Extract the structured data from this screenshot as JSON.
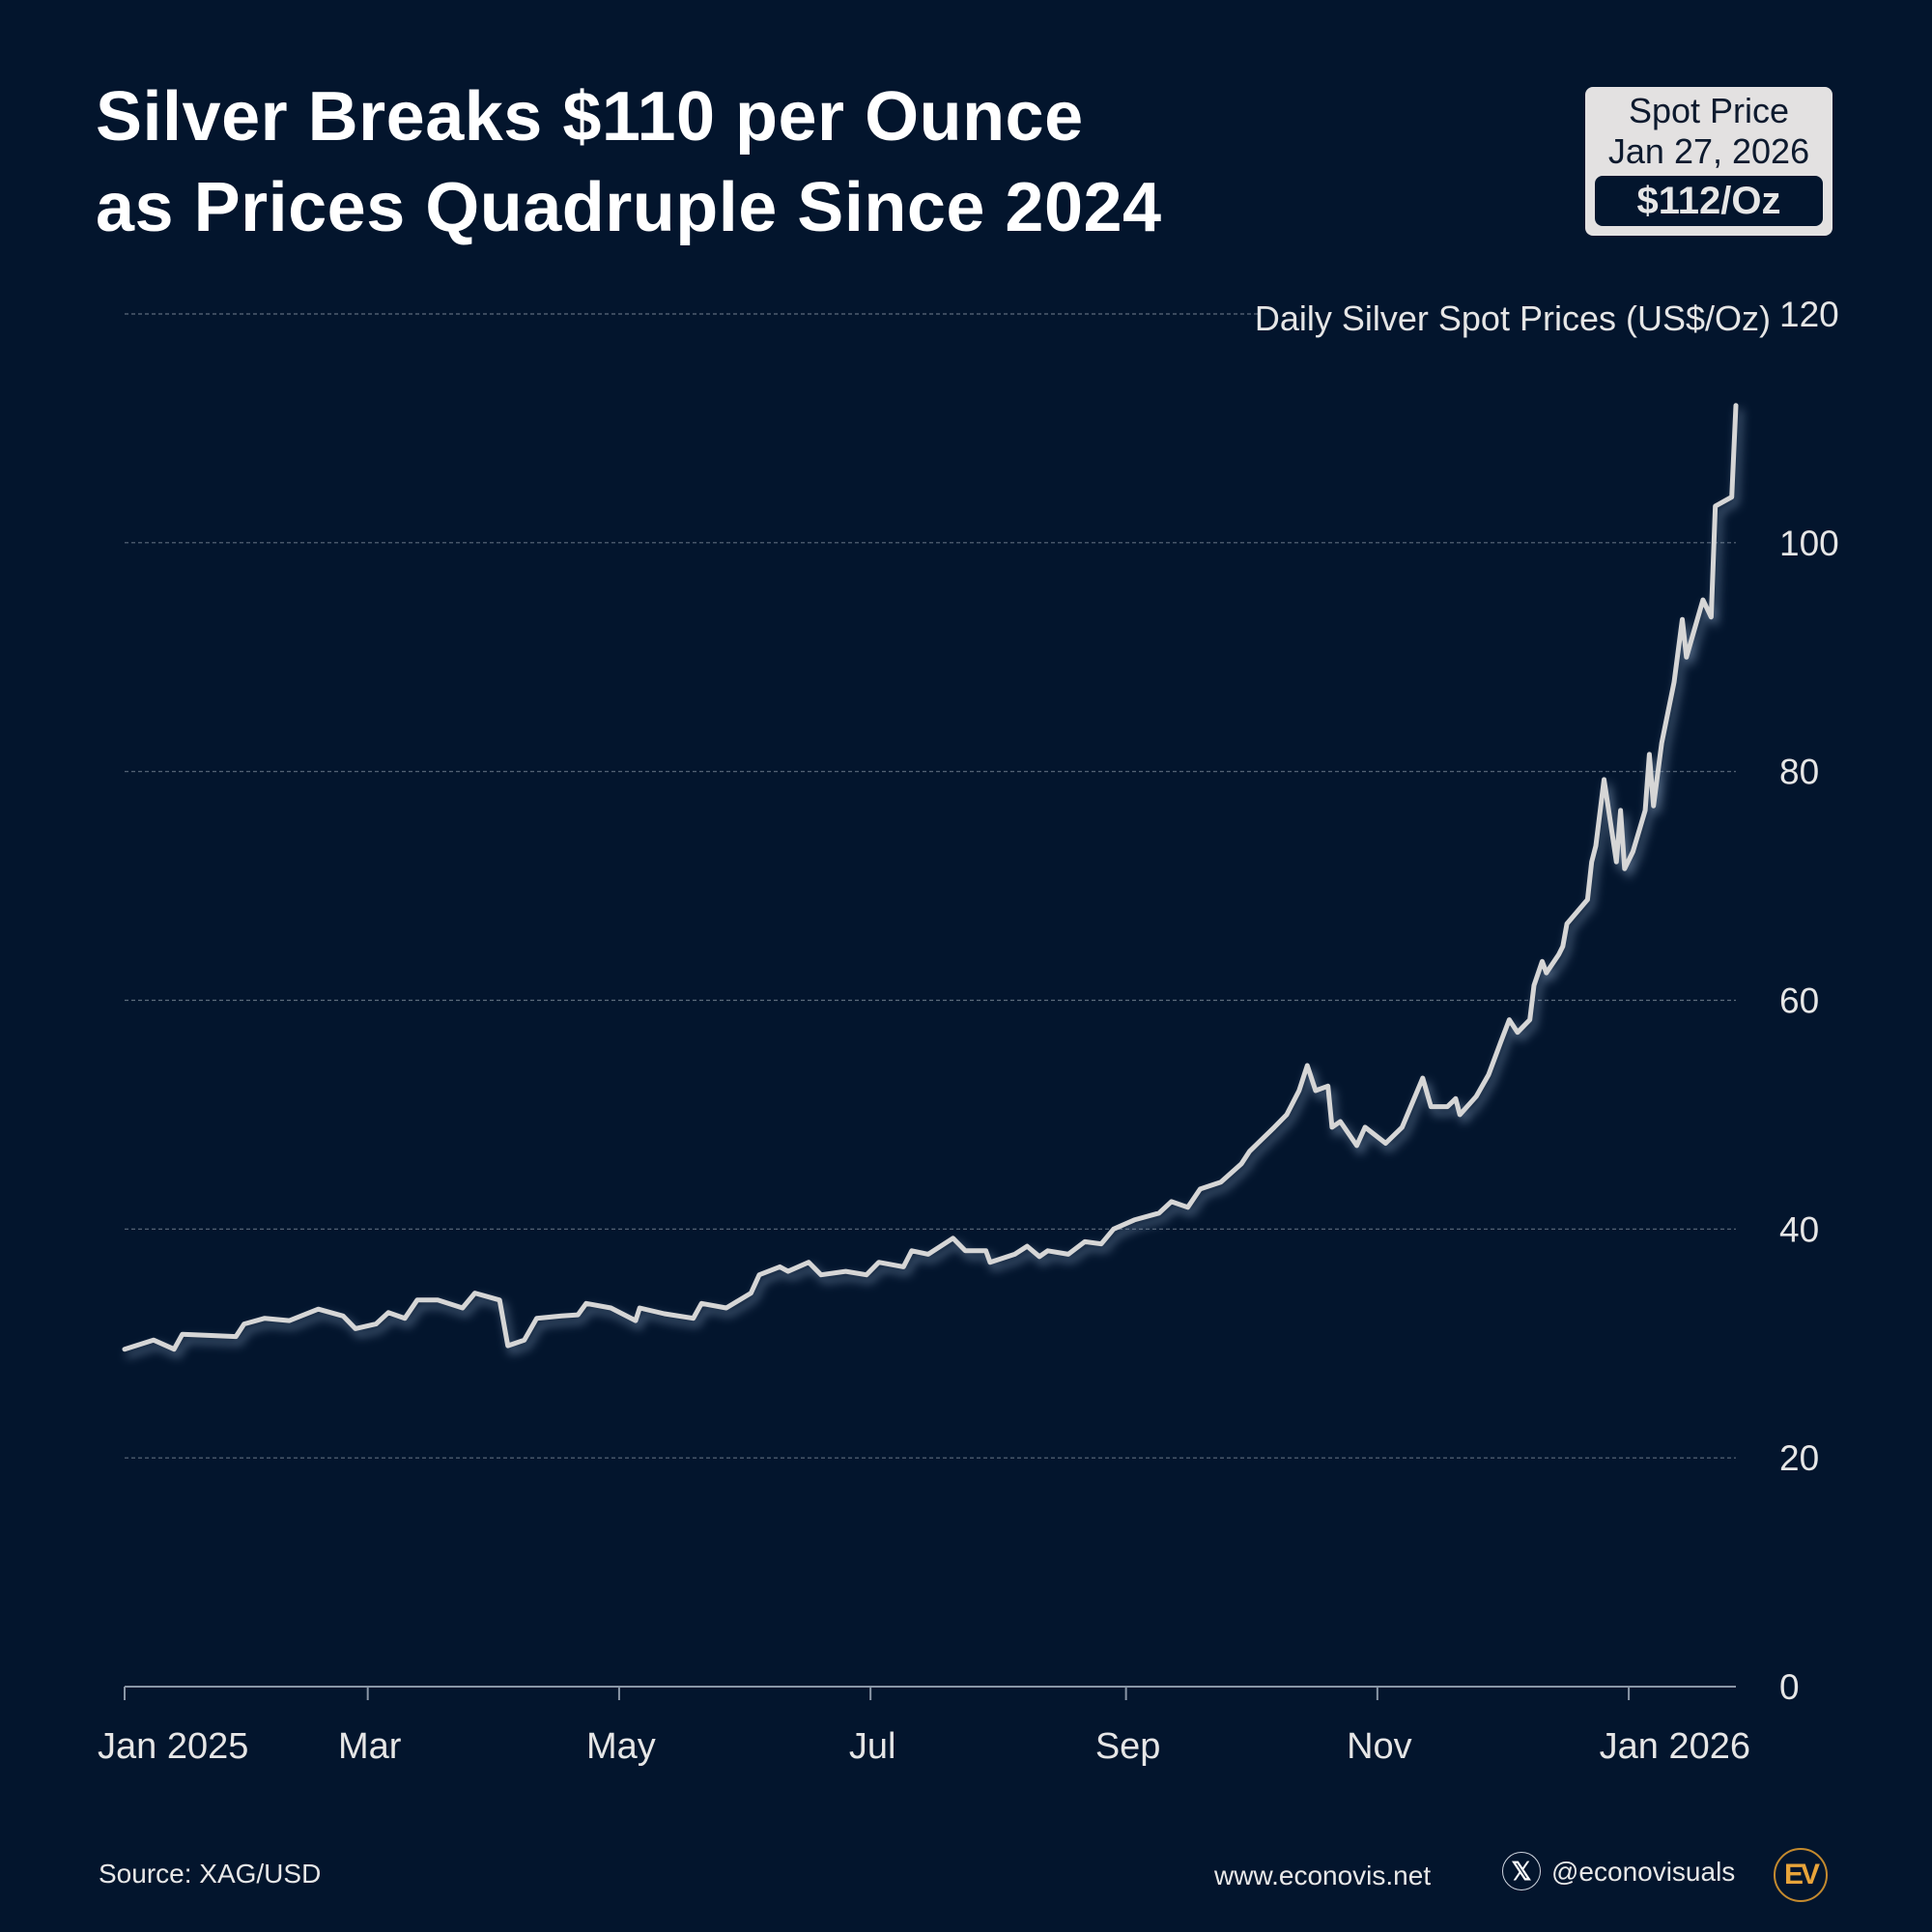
{
  "title": {
    "line1": "Silver Breaks $110 per Ounce",
    "line2": "as Prices Quadruple Since 2024"
  },
  "badge": {
    "label": "Spot Price",
    "date": "Jan 27, 2026",
    "value": "$112/Oz"
  },
  "footer": {
    "source": "Source: XAG/USD",
    "website": "www.econovis.net",
    "handle": "@econovisuals",
    "social_icon": "x-logo-icon",
    "logo_text": "EV"
  },
  "colors": {
    "background": "#03152d",
    "line": "#d6d6d6",
    "glow": "#9fb8d8",
    "logo": "#e8a43a"
  },
  "chart_data": {
    "type": "line",
    "title": "Silver Breaks $110 per Ounce as Prices Quadruple Since 2024",
    "ylabel": "Daily Silver Spot Prices (US$/Oz)",
    "xlabel": "",
    "ylim": [
      0,
      120
    ],
    "yticks": [
      0,
      20,
      40,
      60,
      80,
      100,
      120
    ],
    "xlim": [
      "2025-01-01",
      "2026-01-27"
    ],
    "xticks": [
      {
        "date": "2025-01-01",
        "label": "Jan 2025"
      },
      {
        "date": "2025-03-01",
        "label": "Mar"
      },
      {
        "date": "2025-05-01",
        "label": "May"
      },
      {
        "date": "2025-07-01",
        "label": "Jul"
      },
      {
        "date": "2025-09-01",
        "label": "Sep"
      },
      {
        "date": "2025-11-01",
        "label": "Nov"
      },
      {
        "date": "2026-01-01",
        "label": "Jan 2026"
      }
    ],
    "grid": true,
    "y_axis_position": "right",
    "points": [
      [
        "2025-01-01",
        29.5
      ],
      [
        "2025-01-08",
        30.3
      ],
      [
        "2025-01-13",
        29.5
      ],
      [
        "2025-01-15",
        30.8
      ],
      [
        "2025-01-22",
        30.7
      ],
      [
        "2025-01-28",
        30.6
      ],
      [
        "2025-01-30",
        31.7
      ],
      [
        "2025-02-04",
        32.2
      ],
      [
        "2025-02-10",
        32.0
      ],
      [
        "2025-02-17",
        33.0
      ],
      [
        "2025-02-23",
        32.4
      ],
      [
        "2025-02-26",
        31.3
      ],
      [
        "2025-03-03",
        31.7
      ],
      [
        "2025-03-06",
        32.7
      ],
      [
        "2025-03-10",
        32.2
      ],
      [
        "2025-03-13",
        33.8
      ],
      [
        "2025-03-18",
        33.8
      ],
      [
        "2025-03-24",
        33.1
      ],
      [
        "2025-03-27",
        34.4
      ],
      [
        "2025-04-02",
        33.8
      ],
      [
        "2025-04-04",
        29.8
      ],
      [
        "2025-04-08",
        30.3
      ],
      [
        "2025-04-11",
        32.2
      ],
      [
        "2025-04-17",
        32.4
      ],
      [
        "2025-04-21",
        32.5
      ],
      [
        "2025-04-23",
        33.5
      ],
      [
        "2025-04-29",
        33.1
      ],
      [
        "2025-05-05",
        32.0
      ],
      [
        "2025-05-06",
        33.1
      ],
      [
        "2025-05-12",
        32.6
      ],
      [
        "2025-05-19",
        32.2
      ],
      [
        "2025-05-21",
        33.5
      ],
      [
        "2025-05-27",
        33.1
      ],
      [
        "2025-06-02",
        34.4
      ],
      [
        "2025-06-04",
        36.0
      ],
      [
        "2025-06-09",
        36.7
      ],
      [
        "2025-06-11",
        36.3
      ],
      [
        "2025-06-16",
        37.1
      ],
      [
        "2025-06-19",
        36.0
      ],
      [
        "2025-06-25",
        36.3
      ],
      [
        "2025-06-30",
        36.0
      ],
      [
        "2025-07-03",
        37.1
      ],
      [
        "2025-07-09",
        36.7
      ],
      [
        "2025-07-11",
        38.1
      ],
      [
        "2025-07-15",
        37.8
      ],
      [
        "2025-07-21",
        39.2
      ],
      [
        "2025-07-24",
        38.1
      ],
      [
        "2025-07-29",
        38.1
      ],
      [
        "2025-07-30",
        37.1
      ],
      [
        "2025-08-05",
        37.8
      ],
      [
        "2025-08-08",
        38.5
      ],
      [
        "2025-08-11",
        37.6
      ],
      [
        "2025-08-13",
        38.1
      ],
      [
        "2025-08-18",
        37.8
      ],
      [
        "2025-08-22",
        38.9
      ],
      [
        "2025-08-26",
        38.7
      ],
      [
        "2025-08-29",
        40.0
      ],
      [
        "2025-09-03",
        40.8
      ],
      [
        "2025-09-09",
        41.4
      ],
      [
        "2025-09-12",
        42.4
      ],
      [
        "2025-09-16",
        41.9
      ],
      [
        "2025-09-19",
        43.5
      ],
      [
        "2025-09-24",
        44.1
      ],
      [
        "2025-09-29",
        45.7
      ],
      [
        "2025-10-01",
        46.8
      ],
      [
        "2025-10-03",
        47.5
      ],
      [
        "2025-10-07",
        48.9
      ],
      [
        "2025-10-10",
        50.0
      ],
      [
        "2025-10-13",
        52.1
      ],
      [
        "2025-10-15",
        54.3
      ],
      [
        "2025-10-17",
        52.1
      ],
      [
        "2025-10-20",
        52.5
      ],
      [
        "2025-10-21",
        48.9
      ],
      [
        "2025-10-23",
        49.4
      ],
      [
        "2025-10-27",
        47.3
      ],
      [
        "2025-10-29",
        48.9
      ],
      [
        "2025-11-03",
        47.5
      ],
      [
        "2025-11-07",
        48.9
      ],
      [
        "2025-11-12",
        53.2
      ],
      [
        "2025-11-14",
        50.7
      ],
      [
        "2025-11-18",
        50.7
      ],
      [
        "2025-11-20",
        51.4
      ],
      [
        "2025-11-21",
        50.0
      ],
      [
        "2025-11-25",
        51.6
      ],
      [
        "2025-11-28",
        53.5
      ],
      [
        "2025-12-01",
        56.4
      ],
      [
        "2025-12-03",
        58.3
      ],
      [
        "2025-12-05",
        57.2
      ],
      [
        "2025-12-08",
        58.3
      ],
      [
        "2025-12-09",
        61.3
      ],
      [
        "2025-12-11",
        63.4
      ],
      [
        "2025-12-12",
        62.4
      ],
      [
        "2025-12-15",
        64.0
      ],
      [
        "2025-12-16",
        64.7
      ],
      [
        "2025-12-17",
        66.7
      ],
      [
        "2025-12-22",
        68.8
      ],
      [
        "2025-12-23",
        72.1
      ],
      [
        "2025-12-24",
        73.5
      ],
      [
        "2025-12-26",
        79.3
      ],
      [
        "2025-12-29",
        72.1
      ],
      [
        "2025-12-30",
        76.6
      ],
      [
        "2025-12-31",
        71.5
      ],
      [
        "2026-01-02",
        73.0
      ],
      [
        "2026-01-05",
        76.6
      ],
      [
        "2026-01-06",
        81.5
      ],
      [
        "2026-01-07",
        77.0
      ],
      [
        "2026-01-09",
        82.5
      ],
      [
        "2026-01-12",
        87.8
      ],
      [
        "2026-01-14",
        93.3
      ],
      [
        "2026-01-15",
        90.0
      ],
      [
        "2026-01-19",
        95.0
      ],
      [
        "2026-01-21",
        93.5
      ],
      [
        "2026-01-22",
        103.2
      ],
      [
        "2026-01-26",
        104.0
      ],
      [
        "2026-01-27",
        112.0
      ]
    ]
  }
}
